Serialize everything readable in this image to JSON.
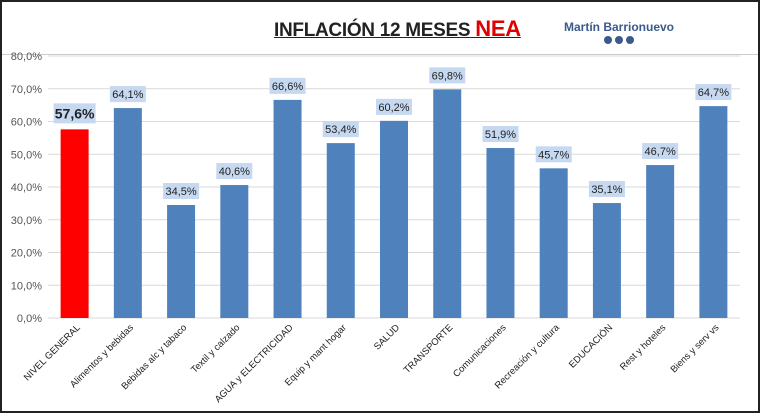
{
  "chart_data": {
    "type": "bar",
    "title": "INFLACIÓN 12 MESES",
    "title_highlight": "NEA",
    "brand": "Martín Barrionuevo",
    "categories": [
      "NIVEL GENERAL",
      "Alimentos y bebidas",
      "Bebidas alc y tabaco",
      "Textil y calzado",
      "AGUA y ELECTRICIDAD",
      "Equip y mant hogar",
      "SALUD",
      "TRANSPORTE",
      "Comunicaciones",
      "Recreación y cultura",
      "EDUCACIÓN",
      "Rest y hoteles",
      "Biens y serv vs"
    ],
    "values": [
      57.6,
      64.1,
      34.5,
      40.6,
      66.6,
      53.4,
      60.2,
      69.8,
      51.9,
      45.7,
      35.1,
      46.7,
      64.7
    ],
    "data_labels": [
      "57,6%",
      "64,1%",
      "34,5%",
      "40,6%",
      "66,6%",
      "53,4%",
      "60,2%",
      "69,8%",
      "51,9%",
      "45,7%",
      "35,1%",
      "46,7%",
      "64,7%"
    ],
    "yticks": [
      "0,0%",
      "10,0%",
      "20,0%",
      "30,0%",
      "40,0%",
      "50,0%",
      "60,0%",
      "70,0%",
      "80,0%"
    ],
    "ylim": [
      0,
      80
    ],
    "grid": true,
    "colors": {
      "highlight": "#ff0000",
      "bar": "#4f81bd",
      "label_bg": "#c6d9f1"
    }
  }
}
